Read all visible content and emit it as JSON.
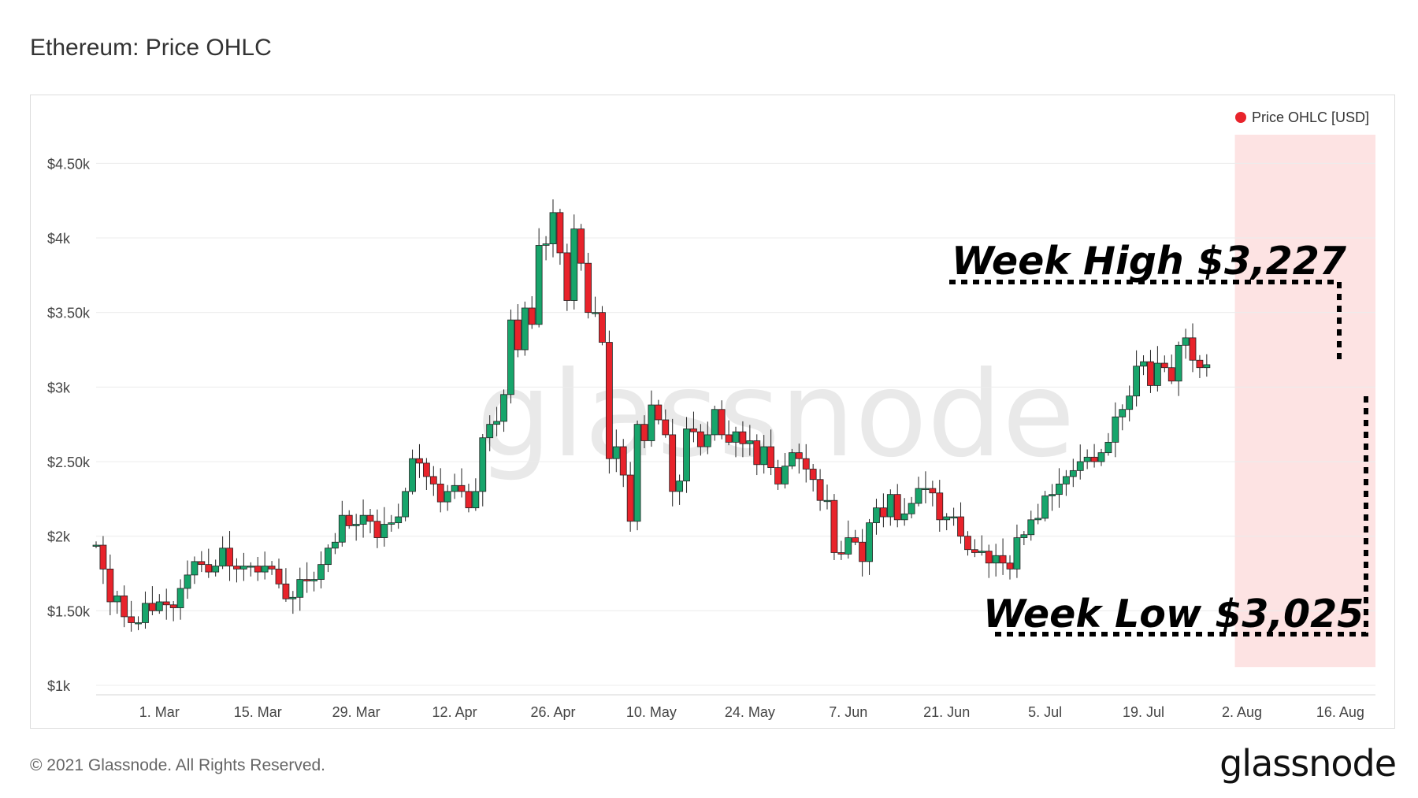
{
  "page": {
    "title": "Ethereum: Price OHLC",
    "footer": "© 2021 Glassnode. All Rights Reserved.",
    "brand": "glassnode",
    "watermark": "glassnode"
  },
  "chart_data": {
    "type": "candlestick",
    "title": "Ethereum: Price OHLC",
    "legend": {
      "label": "Price OHLC [USD]",
      "color": "#e8232b",
      "placement": "top-right"
    },
    "colors": {
      "up": "#17a56b",
      "down": "#e8232b",
      "highlight": "#fde3e3"
    },
    "ylim": [
      1000,
      4750
    ],
    "y_ticks": [
      {
        "value": 1000,
        "label": "$1k"
      },
      {
        "value": 1500,
        "label": "$1.50k"
      },
      {
        "value": 2000,
        "label": "$2k"
      },
      {
        "value": 2500,
        "label": "$2.50k"
      },
      {
        "value": 3000,
        "label": "$3k"
      },
      {
        "value": 3500,
        "label": "$3.50k"
      },
      {
        "value": 4000,
        "label": "$4k"
      },
      {
        "value": 4500,
        "label": "$4.50k"
      }
    ],
    "x_start": "2021-02-20",
    "x_end": "2021-08-21",
    "x_ticks": [
      {
        "date": "2021-03-01",
        "label": "1. Mar"
      },
      {
        "date": "2021-03-15",
        "label": "15. Mar"
      },
      {
        "date": "2021-03-29",
        "label": "29. Mar"
      },
      {
        "date": "2021-04-12",
        "label": "12. Apr"
      },
      {
        "date": "2021-04-26",
        "label": "26. Apr"
      },
      {
        "date": "2021-05-10",
        "label": "10. May"
      },
      {
        "date": "2021-05-24",
        "label": "24. May"
      },
      {
        "date": "2021-06-07",
        "label": "7. Jun"
      },
      {
        "date": "2021-06-21",
        "label": "21. Jun"
      },
      {
        "date": "2021-07-05",
        "label": "5. Jul"
      },
      {
        "date": "2021-07-19",
        "label": "19. Jul"
      },
      {
        "date": "2021-08-02",
        "label": "2. Aug"
      },
      {
        "date": "2021-08-16",
        "label": "16. Aug"
      }
    ],
    "close_start": 1940,
    "closes": [
      1940,
      1780,
      1560,
      1600,
      1460,
      1420,
      1420,
      1550,
      1500,
      1560,
      1540,
      1520,
      1650,
      1740,
      1830,
      1810,
      1760,
      1800,
      1920,
      1800,
      1780,
      1800,
      1800,
      1760,
      1800,
      1780,
      1680,
      1580,
      1590,
      1710,
      1700,
      1710,
      1810,
      1920,
      1960,
      2140,
      2070,
      2080,
      2140,
      2100,
      1990,
      2080,
      2090,
      2130,
      2300,
      2520,
      2490,
      2400,
      2350,
      2230,
      2300,
      2340,
      2300,
      2190,
      2300,
      2660,
      2750,
      2770,
      2950,
      3450,
      3250,
      3530,
      3420,
      3950,
      3960,
      4170,
      3900,
      3580,
      4060,
      3830,
      3500,
      3500,
      3300,
      2520,
      2600,
      2410,
      2100,
      2750,
      2640,
      2880,
      2780,
      2680,
      2300,
      2370,
      2720,
      2700,
      2600,
      2680,
      2850,
      2680,
      2630,
      2700,
      2620,
      2640,
      2480,
      2600,
      2460,
      2350,
      2470,
      2560,
      2520,
      2450,
      2380,
      2240,
      2240,
      1890,
      1880,
      1990,
      1960,
      1830,
      2090,
      2190,
      2130,
      2280,
      2110,
      2150,
      2220,
      2320,
      2320,
      2290,
      2110,
      2130,
      2130,
      2000,
      1910,
      1890,
      1900,
      1820,
      1870,
      1820,
      1780,
      1990,
      2010,
      2110,
      2120,
      2270,
      2280,
      2350,
      2400,
      2440,
      2500,
      2530,
      2500,
      2560,
      2630,
      2800,
      2850,
      2940,
      3140,
      3170,
      3010,
      3160,
      3130,
      3040,
      3280,
      3330,
      3180,
      3130,
      3150
    ],
    "annotations": [
      {
        "label": "Week High $3,227",
        "value": 3227
      },
      {
        "label": "Week Low $3,025",
        "value": 3025
      }
    ],
    "highlight_range": [
      "2021-08-01",
      "2021-08-21"
    ],
    "grid": true
  }
}
